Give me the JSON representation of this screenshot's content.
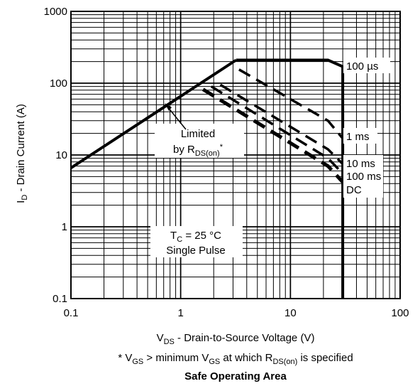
{
  "chart_data": {
    "type": "line",
    "title": "Safe Operating Area",
    "footnote": {
      "prefix": "* V",
      "sub1": "GS",
      "mid": " > minimum V",
      "sub2": "GS",
      "mid2": " at which R",
      "sub3": "DS(on)",
      "suffix": " is specified"
    },
    "xlabel": {
      "main": "V",
      "sub": "DS",
      "rest": " - Drain-to-Source Voltage (V)"
    },
    "ylabel": {
      "main": "I",
      "sub": "D",
      "rest": " - Drain Current (A)"
    },
    "x_scale": "log",
    "y_scale": "log",
    "xlim": [
      0.1,
      100
    ],
    "ylim": [
      0.1,
      1000
    ],
    "x_ticks": [
      "0.1",
      "1",
      "10",
      "100"
    ],
    "y_ticks": [
      "0.1",
      "1",
      "10",
      "100",
      "1000"
    ],
    "grid": true,
    "series": [
      {
        "name": "Limited by RDS(on)",
        "style": "solid",
        "x": [
          0.1,
          3.2
        ],
        "y": [
          6.6,
          210
        ]
      },
      {
        "name": "100 µs",
        "style": "solid",
        "x": [
          3.2,
          22,
          30,
          30
        ],
        "y": [
          210,
          210,
          170,
          0.1
        ]
      },
      {
        "name": "1 ms",
        "style": "dashed",
        "x": [
          3.4,
          22,
          30
        ],
        "y": [
          155,
          30,
          17
        ]
      },
      {
        "name": "10 ms",
        "style": "dashed",
        "x": [
          2.3,
          22,
          30
        ],
        "y": [
          95,
          12,
          7.5
        ]
      },
      {
        "name": "100 ms",
        "style": "dashed",
        "x": [
          1.9,
          22,
          30
        ],
        "y": [
          90,
          9,
          5.5
        ]
      },
      {
        "name": "DC",
        "style": "dashed-thick",
        "x": [
          1.6,
          22,
          30
        ],
        "y": [
          82,
          7,
          4.2
        ]
      }
    ],
    "annotations": {
      "limited_line1": "Limited",
      "limited_line2_main": "by R",
      "limited_line2_sub": "DS(on)",
      "limited_line2_suffix": "*",
      "tc_main": "T",
      "tc_sub": "C",
      "tc_rest": " = 25 °C",
      "pulse": "Single Pulse",
      "label_100us": "100 µs",
      "label_1ms": "1 ms",
      "label_10ms": "10 ms",
      "label_100ms": "100 ms",
      "label_dc": "DC"
    }
  }
}
